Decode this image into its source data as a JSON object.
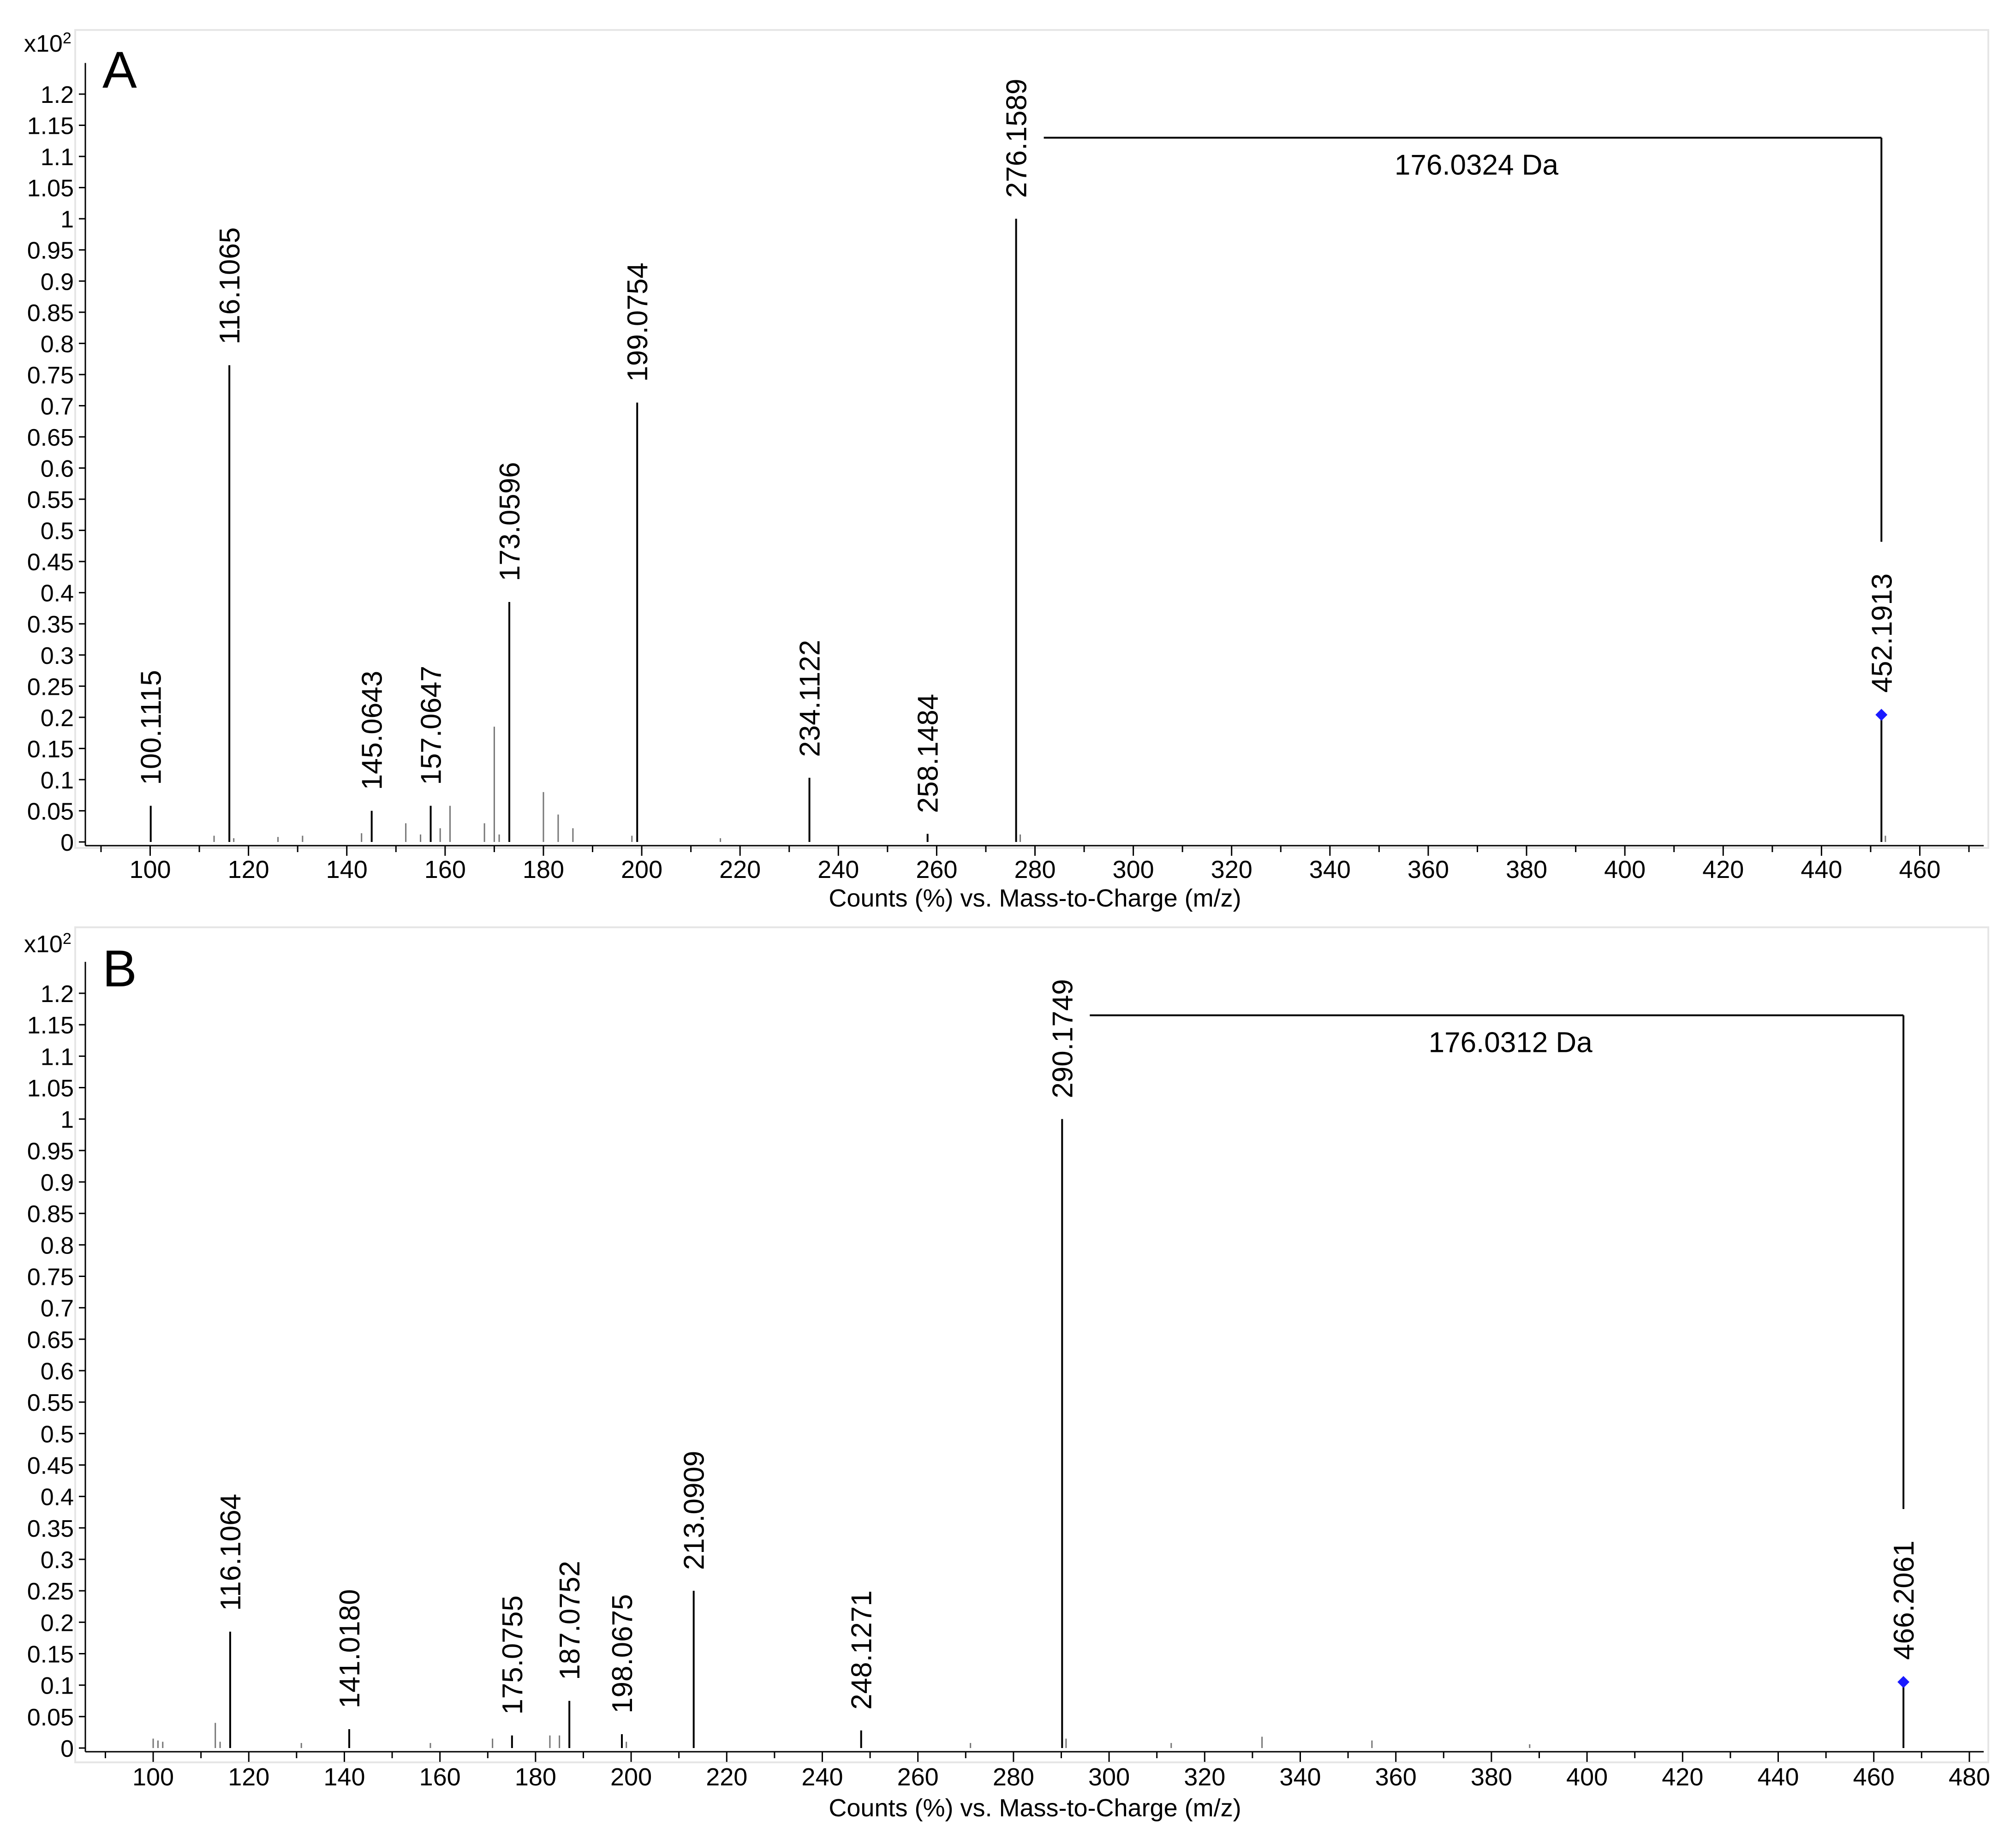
{
  "chart_data": [
    {
      "type": "bar",
      "panel_label": "A",
      "scale_label": "x10",
      "scale_exponent": "2",
      "xlabel": "Counts (%) vs. Mass-to-Charge (m/z)",
      "ylabel": "",
      "xlim": [
        87,
        473
      ],
      "ylim": [
        0,
        1.25
      ],
      "x_ticks": [
        100,
        120,
        140,
        160,
        180,
        200,
        220,
        240,
        260,
        280,
        300,
        320,
        340,
        360,
        380,
        400,
        420,
        440,
        460
      ],
      "y_ticks": [
        0,
        0.05,
        0.1,
        0.15,
        0.2,
        0.25,
        0.3,
        0.35,
        0.4,
        0.45,
        0.5,
        0.55,
        0.6,
        0.65,
        0.7,
        0.75,
        0.8,
        0.85,
        0.9,
        0.95,
        1,
        1.05,
        1.1,
        1.15,
        1.2
      ],
      "labeled_peaks": [
        {
          "mz": 100.1115,
          "intensity": 0.058,
          "label": "100.1115"
        },
        {
          "mz": 116.1065,
          "intensity": 0.765,
          "label": "116.1065"
        },
        {
          "mz": 145.0643,
          "intensity": 0.05,
          "label": "145.0643"
        },
        {
          "mz": 157.0647,
          "intensity": 0.058,
          "label": "157.0647"
        },
        {
          "mz": 173.0596,
          "intensity": 0.385,
          "label": "173.0596"
        },
        {
          "mz": 199.0754,
          "intensity": 0.705,
          "label": "199.0754"
        },
        {
          "mz": 234.1122,
          "intensity": 0.103,
          "label": "234.1122"
        },
        {
          "mz": 258.1484,
          "intensity": 0.013,
          "label": "258.1484"
        },
        {
          "mz": 276.1589,
          "intensity": 1.0,
          "label": "276.1589"
        },
        {
          "mz": 452.1913,
          "intensity": 0.204,
          "label": "452.1913",
          "precursor": true
        }
      ],
      "minor_peaks": [
        {
          "mz": 113,
          "intensity": 0.01
        },
        {
          "mz": 117,
          "intensity": 0.006
        },
        {
          "mz": 126,
          "intensity": 0.008
        },
        {
          "mz": 131,
          "intensity": 0.01
        },
        {
          "mz": 143,
          "intensity": 0.014
        },
        {
          "mz": 152,
          "intensity": 0.03
        },
        {
          "mz": 155,
          "intensity": 0.012
        },
        {
          "mz": 159,
          "intensity": 0.022
        },
        {
          "mz": 161,
          "intensity": 0.058
        },
        {
          "mz": 168,
          "intensity": 0.03
        },
        {
          "mz": 170,
          "intensity": 0.185
        },
        {
          "mz": 171,
          "intensity": 0.012
        },
        {
          "mz": 180,
          "intensity": 0.08
        },
        {
          "mz": 183,
          "intensity": 0.044
        },
        {
          "mz": 186,
          "intensity": 0.022
        },
        {
          "mz": 198,
          "intensity": 0.01
        },
        {
          "mz": 216,
          "intensity": 0.006
        },
        {
          "mz": 277,
          "intensity": 0.012
        },
        {
          "mz": 453,
          "intensity": 0.01
        }
      ],
      "neutral_loss": {
        "from_mz": 276.1589,
        "to_mz": 452.1913,
        "level": 1.13,
        "label": "176.0324 Da"
      },
      "precursor_marker_color": "#1a1aff"
    },
    {
      "type": "bar",
      "panel_label": "B",
      "scale_label": "x10",
      "scale_exponent": "2",
      "xlabel": "Counts (%) vs. Mass-to-Charge (m/z)",
      "ylabel": "",
      "xlim": [
        86,
        483
      ],
      "ylim": [
        0,
        1.25
      ],
      "x_ticks": [
        100,
        120,
        140,
        160,
        180,
        200,
        220,
        240,
        260,
        280,
        300,
        320,
        340,
        360,
        380,
        400,
        420,
        440,
        460,
        480
      ],
      "y_ticks": [
        0,
        0.05,
        0.1,
        0.15,
        0.2,
        0.25,
        0.3,
        0.35,
        0.4,
        0.45,
        0.5,
        0.55,
        0.6,
        0.65,
        0.7,
        0.75,
        0.8,
        0.85,
        0.9,
        0.95,
        1,
        1.05,
        1.1,
        1.15,
        1.2
      ],
      "labeled_peaks": [
        {
          "mz": 116.1064,
          "intensity": 0.185,
          "label": "116.1064"
        },
        {
          "mz": 141.018,
          "intensity": 0.03,
          "label": "141.0180"
        },
        {
          "mz": 175.0755,
          "intensity": 0.02,
          "label": "175.0755"
        },
        {
          "mz": 187.0752,
          "intensity": 0.075,
          "label": "187.0752"
        },
        {
          "mz": 198.0675,
          "intensity": 0.022,
          "label": "198.0675"
        },
        {
          "mz": 213.0909,
          "intensity": 0.25,
          "label": "213.0909"
        },
        {
          "mz": 248.1271,
          "intensity": 0.028,
          "label": "248.1271"
        },
        {
          "mz": 290.1749,
          "intensity": 1.0,
          "label": "290.1749"
        },
        {
          "mz": 466.2061,
          "intensity": 0.105,
          "label": "466.2061",
          "precursor": true
        }
      ],
      "minor_peaks": [
        {
          "mz": 100,
          "intensity": 0.015
        },
        {
          "mz": 101,
          "intensity": 0.012
        },
        {
          "mz": 102,
          "intensity": 0.01
        },
        {
          "mz": 113,
          "intensity": 0.04
        },
        {
          "mz": 114,
          "intensity": 0.01
        },
        {
          "mz": 131,
          "intensity": 0.008
        },
        {
          "mz": 158,
          "intensity": 0.008
        },
        {
          "mz": 171,
          "intensity": 0.015
        },
        {
          "mz": 183,
          "intensity": 0.02
        },
        {
          "mz": 185,
          "intensity": 0.02
        },
        {
          "mz": 199,
          "intensity": 0.01
        },
        {
          "mz": 271,
          "intensity": 0.008
        },
        {
          "mz": 291,
          "intensity": 0.015
        },
        {
          "mz": 313,
          "intensity": 0.008
        },
        {
          "mz": 332,
          "intensity": 0.018
        },
        {
          "mz": 355,
          "intensity": 0.012
        },
        {
          "mz": 388,
          "intensity": 0.006
        }
      ],
      "neutral_loss": {
        "from_mz": 290.1749,
        "to_mz": 466.2061,
        "level": 1.165,
        "label": "176.0312 Da"
      },
      "precursor_marker_color": "#1a1aff"
    }
  ]
}
